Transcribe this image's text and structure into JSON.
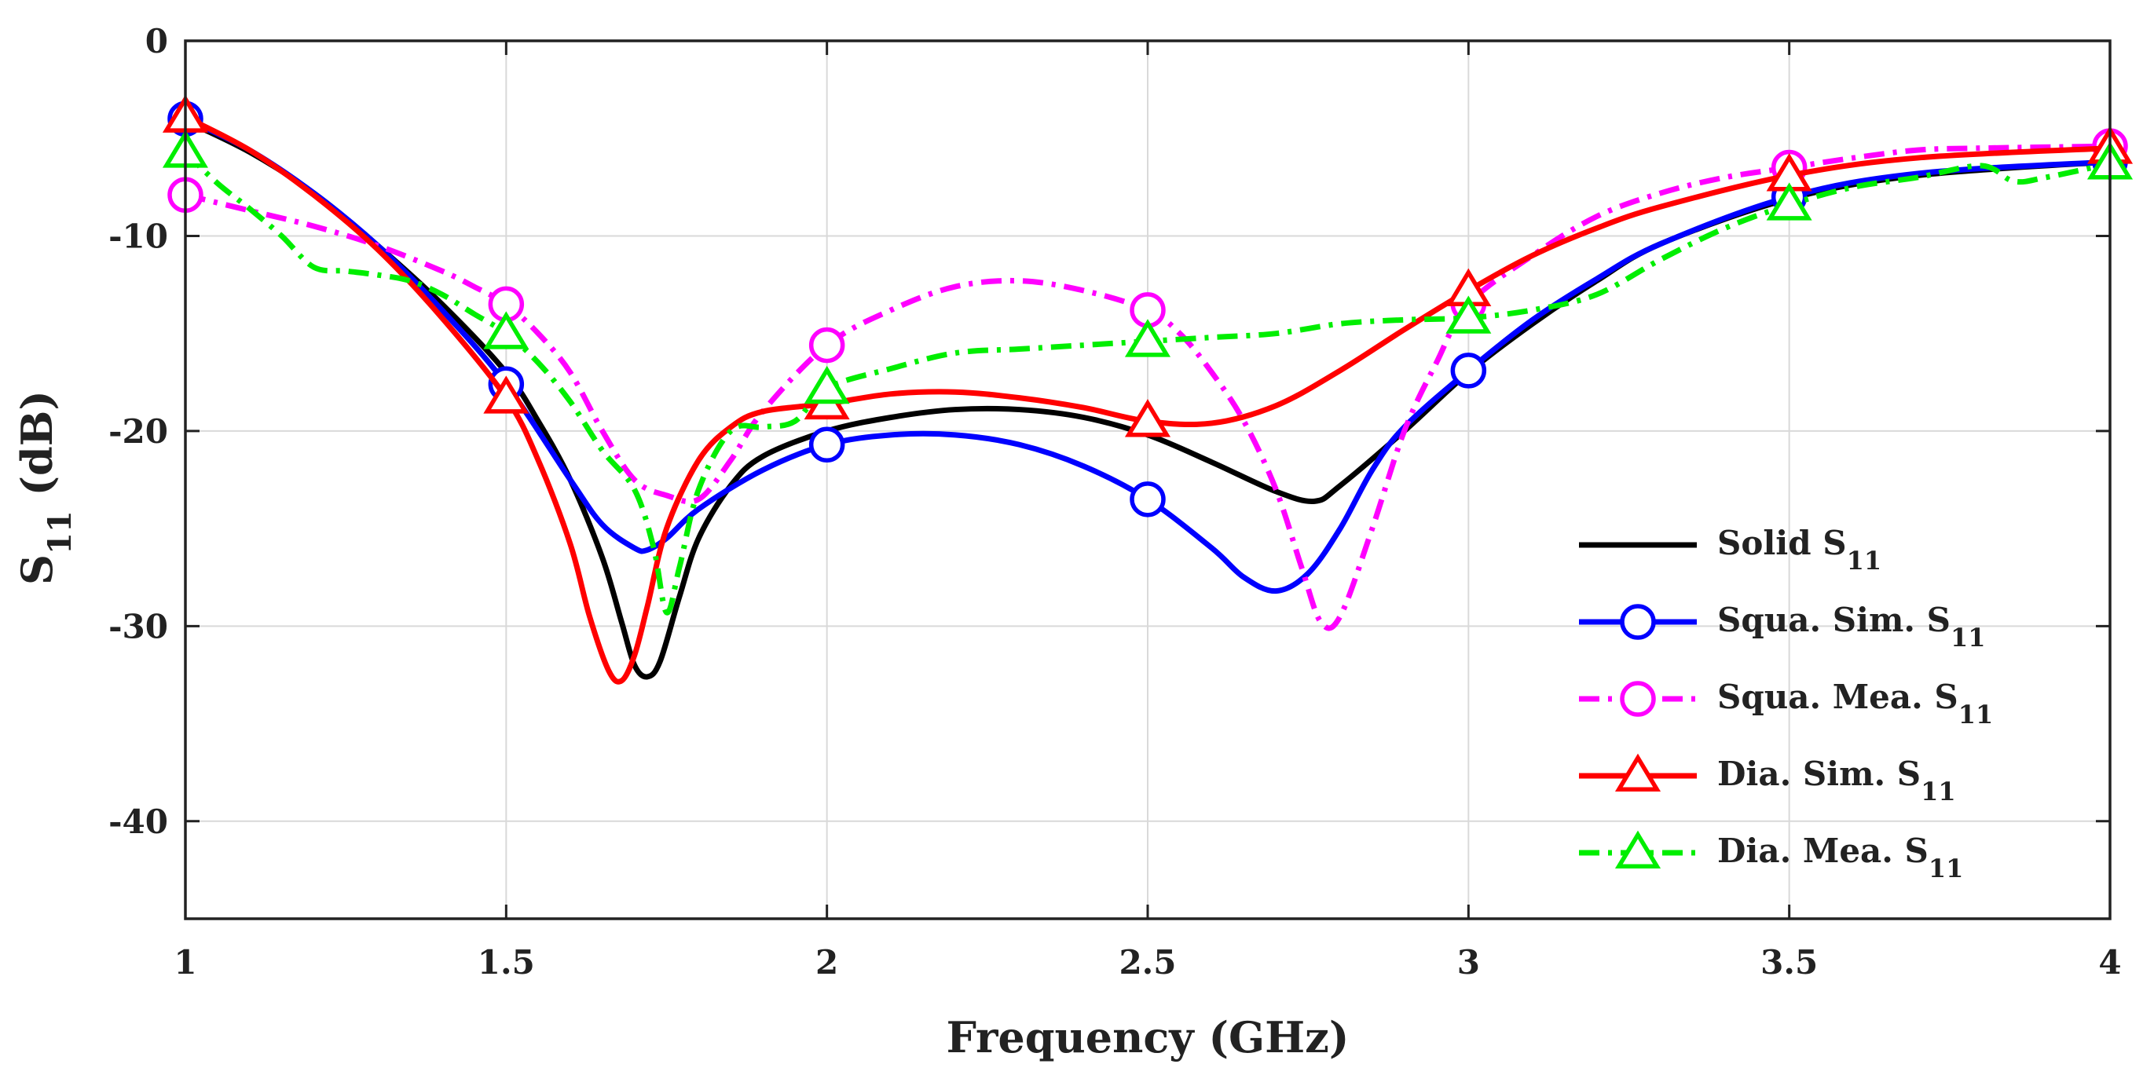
{
  "chart_data": {
    "type": "line",
    "title": "",
    "xlabel": "Frequency (GHz)",
    "ylabel": {
      "main": "S",
      "sub": "11",
      "unit": " (dB)"
    },
    "xlim": [
      1,
      4
    ],
    "ylim": [
      -45,
      0
    ],
    "xticks": [
      1,
      1.5,
      2,
      2.5,
      3,
      3.5,
      4
    ],
    "xtick_labels": [
      "1",
      "1.5",
      "2",
      "2.5",
      "3",
      "3.5",
      "4"
    ],
    "yticks": [
      0,
      -10,
      -20,
      -30,
      -40
    ],
    "ytick_labels": [
      "0",
      "-10",
      "-20",
      "-30",
      "-40"
    ],
    "grid": true,
    "legend_position": "bottom-right",
    "series": [
      {
        "name": "Solid S11",
        "label_main": "Solid S",
        "label_sub": "11",
        "color": "#000000",
        "style": "solid",
        "marker": "none",
        "x": [
          1.0,
          1.1,
          1.2,
          1.3,
          1.4,
          1.5,
          1.55,
          1.6,
          1.65,
          1.68,
          1.7,
          1.72,
          1.74,
          1.77,
          1.8,
          1.85,
          1.9,
          2.0,
          2.1,
          2.2,
          2.3,
          2.4,
          2.5,
          2.6,
          2.7,
          2.76,
          2.8,
          2.9,
          3.0,
          3.1,
          3.2,
          3.3,
          3.5,
          3.7,
          4.0
        ],
        "y": [
          -4.1,
          -5.7,
          -7.8,
          -10.5,
          -13.5,
          -17.0,
          -19.5,
          -22.5,
          -26.5,
          -29.8,
          -32.0,
          -32.6,
          -31.8,
          -28.5,
          -25.5,
          -22.8,
          -21.3,
          -20.0,
          -19.3,
          -18.9,
          -18.9,
          -19.3,
          -20.2,
          -21.6,
          -23.1,
          -23.6,
          -22.8,
          -20.0,
          -17.0,
          -14.5,
          -12.3,
          -10.4,
          -8.1,
          -6.9,
          -6.2
        ],
        "markers_at": [],
        "markers_y": []
      },
      {
        "name": "Squa. Sim. S11",
        "label_main": "Squa. Sim. S",
        "label_sub": "11",
        "color": "#0000ff",
        "style": "solid",
        "marker": "circle",
        "x": [
          1.0,
          1.1,
          1.2,
          1.3,
          1.4,
          1.5,
          1.6,
          1.65,
          1.7,
          1.72,
          1.75,
          1.8,
          1.9,
          2.0,
          2.1,
          2.2,
          2.3,
          2.4,
          2.5,
          2.6,
          2.65,
          2.7,
          2.75,
          2.8,
          2.85,
          2.9,
          3.0,
          3.1,
          3.2,
          3.3,
          3.5,
          3.7,
          4.0
        ],
        "y": [
          -4.0,
          -5.6,
          -7.8,
          -10.5,
          -13.8,
          -17.6,
          -22.5,
          -24.8,
          -26.0,
          -26.1,
          -25.5,
          -24.0,
          -22.0,
          -20.7,
          -20.2,
          -20.2,
          -20.7,
          -21.8,
          -23.5,
          -26.0,
          -27.5,
          -28.2,
          -27.3,
          -25.0,
          -22.0,
          -19.8,
          -16.9,
          -14.3,
          -12.2,
          -10.4,
          -8.0,
          -6.8,
          -6.2
        ],
        "markers_at": [
          1.0,
          1.5,
          2.0,
          2.5,
          3.0,
          3.5,
          4.0
        ],
        "markers_y": [
          -4.0,
          -17.6,
          -20.7,
          -23.5,
          -16.9,
          -8.0,
          -6.2
        ]
      },
      {
        "name": "Squa. Mea. S11",
        "label_main": "Squa. Mea. S",
        "label_sub": "11",
        "color": "#ff00ff",
        "style": "dashdot",
        "marker": "circle",
        "x": [
          1.0,
          1.1,
          1.2,
          1.3,
          1.4,
          1.45,
          1.5,
          1.55,
          1.6,
          1.65,
          1.7,
          1.75,
          1.8,
          1.85,
          1.9,
          2.0,
          2.1,
          2.2,
          2.3,
          2.4,
          2.5,
          2.55,
          2.6,
          2.65,
          2.7,
          2.74,
          2.77,
          2.8,
          2.85,
          2.9,
          2.95,
          3.0,
          3.1,
          3.2,
          3.3,
          3.4,
          3.5,
          3.6,
          3.7,
          3.8,
          4.0
        ],
        "y": [
          -7.9,
          -8.7,
          -9.5,
          -10.5,
          -11.8,
          -12.6,
          -13.5,
          -15.0,
          -17.0,
          -20.0,
          -22.5,
          -23.3,
          -23.5,
          -21.5,
          -19.0,
          -15.6,
          -13.8,
          -12.6,
          -12.3,
          -12.8,
          -13.8,
          -15.0,
          -17.0,
          -19.5,
          -23.0,
          -27.0,
          -29.8,
          -29.5,
          -25.0,
          -20.0,
          -16.5,
          -13.5,
          -11.0,
          -9.0,
          -7.8,
          -7.0,
          -6.5,
          -6.0,
          -5.6,
          -5.5,
          -5.4
        ],
        "markers_at": [
          1.0,
          1.5,
          2.0,
          2.5,
          3.0,
          3.5,
          4.0
        ],
        "markers_y": [
          -7.9,
          -13.5,
          -15.6,
          -13.8,
          -13.5,
          -6.5,
          -5.4
        ]
      },
      {
        "name": "Dia. Sim. S11",
        "label_main": "Dia. Sim. S",
        "label_sub": "11",
        "color": "#ff0000",
        "style": "solid",
        "marker": "triangle",
        "x": [
          1.0,
          1.1,
          1.2,
          1.3,
          1.4,
          1.5,
          1.55,
          1.6,
          1.63,
          1.66,
          1.68,
          1.7,
          1.72,
          1.75,
          1.8,
          1.85,
          1.9,
          2.0,
          2.1,
          2.2,
          2.3,
          2.4,
          2.5,
          2.6,
          2.7,
          2.8,
          2.9,
          3.0,
          3.1,
          3.2,
          3.3,
          3.5,
          3.7,
          4.0
        ],
        "y": [
          -3.9,
          -5.6,
          -7.9,
          -10.7,
          -14.2,
          -18.3,
          -21.5,
          -25.8,
          -29.5,
          -32.3,
          -32.8,
          -31.5,
          -29.0,
          -25.0,
          -21.5,
          -19.8,
          -19.0,
          -18.6,
          -18.1,
          -18.0,
          -18.3,
          -18.8,
          -19.5,
          -19.6,
          -18.7,
          -16.9,
          -14.8,
          -12.8,
          -11.0,
          -9.6,
          -8.5,
          -6.9,
          -6.0,
          -5.5
        ],
        "markers_at": [
          1.0,
          1.5,
          2.0,
          2.5,
          3.0,
          3.5,
          4.0
        ],
        "markers_y": [
          -3.9,
          -18.3,
          -18.6,
          -19.5,
          -12.8,
          -6.9,
          -5.5
        ]
      },
      {
        "name": "Dia. Mea. S11",
        "label_main": "Dia. Mea. S",
        "label_sub": "11",
        "color": "#00ee00",
        "style": "dashdot",
        "marker": "triangle",
        "x": [
          1.0,
          1.05,
          1.1,
          1.15,
          1.2,
          1.25,
          1.3,
          1.35,
          1.4,
          1.45,
          1.5,
          1.55,
          1.6,
          1.65,
          1.7,
          1.73,
          1.75,
          1.77,
          1.8,
          1.85,
          1.9,
          1.95,
          2.0,
          2.1,
          2.2,
          2.3,
          2.4,
          2.5,
          2.6,
          2.7,
          2.8,
          2.9,
          3.0,
          3.1,
          3.2,
          3.3,
          3.4,
          3.5,
          3.6,
          3.7,
          3.8,
          3.85,
          3.9,
          4.0
        ],
        "y": [
          -5.7,
          -7.3,
          -8.6,
          -10.0,
          -11.6,
          -11.8,
          -12.0,
          -12.3,
          -13.0,
          -14.0,
          -15.0,
          -16.5,
          -18.5,
          -21.0,
          -23.0,
          -26.0,
          -29.3,
          -27.0,
          -23.0,
          -20.0,
          -19.8,
          -19.5,
          -17.8,
          -16.8,
          -16.0,
          -15.8,
          -15.6,
          -15.4,
          -15.2,
          -15.0,
          -14.5,
          -14.3,
          -14.2,
          -13.8,
          -13.0,
          -11.2,
          -9.6,
          -8.4,
          -7.5,
          -7.0,
          -6.4,
          -7.2,
          -7.0,
          -6.3
        ],
        "markers_at": [
          1.0,
          1.5,
          2.0,
          2.5,
          3.0,
          3.5,
          4.0
        ],
        "markers_y": [
          -5.7,
          -15.0,
          -17.8,
          -15.4,
          -14.2,
          -8.4,
          -6.3
        ]
      }
    ]
  }
}
